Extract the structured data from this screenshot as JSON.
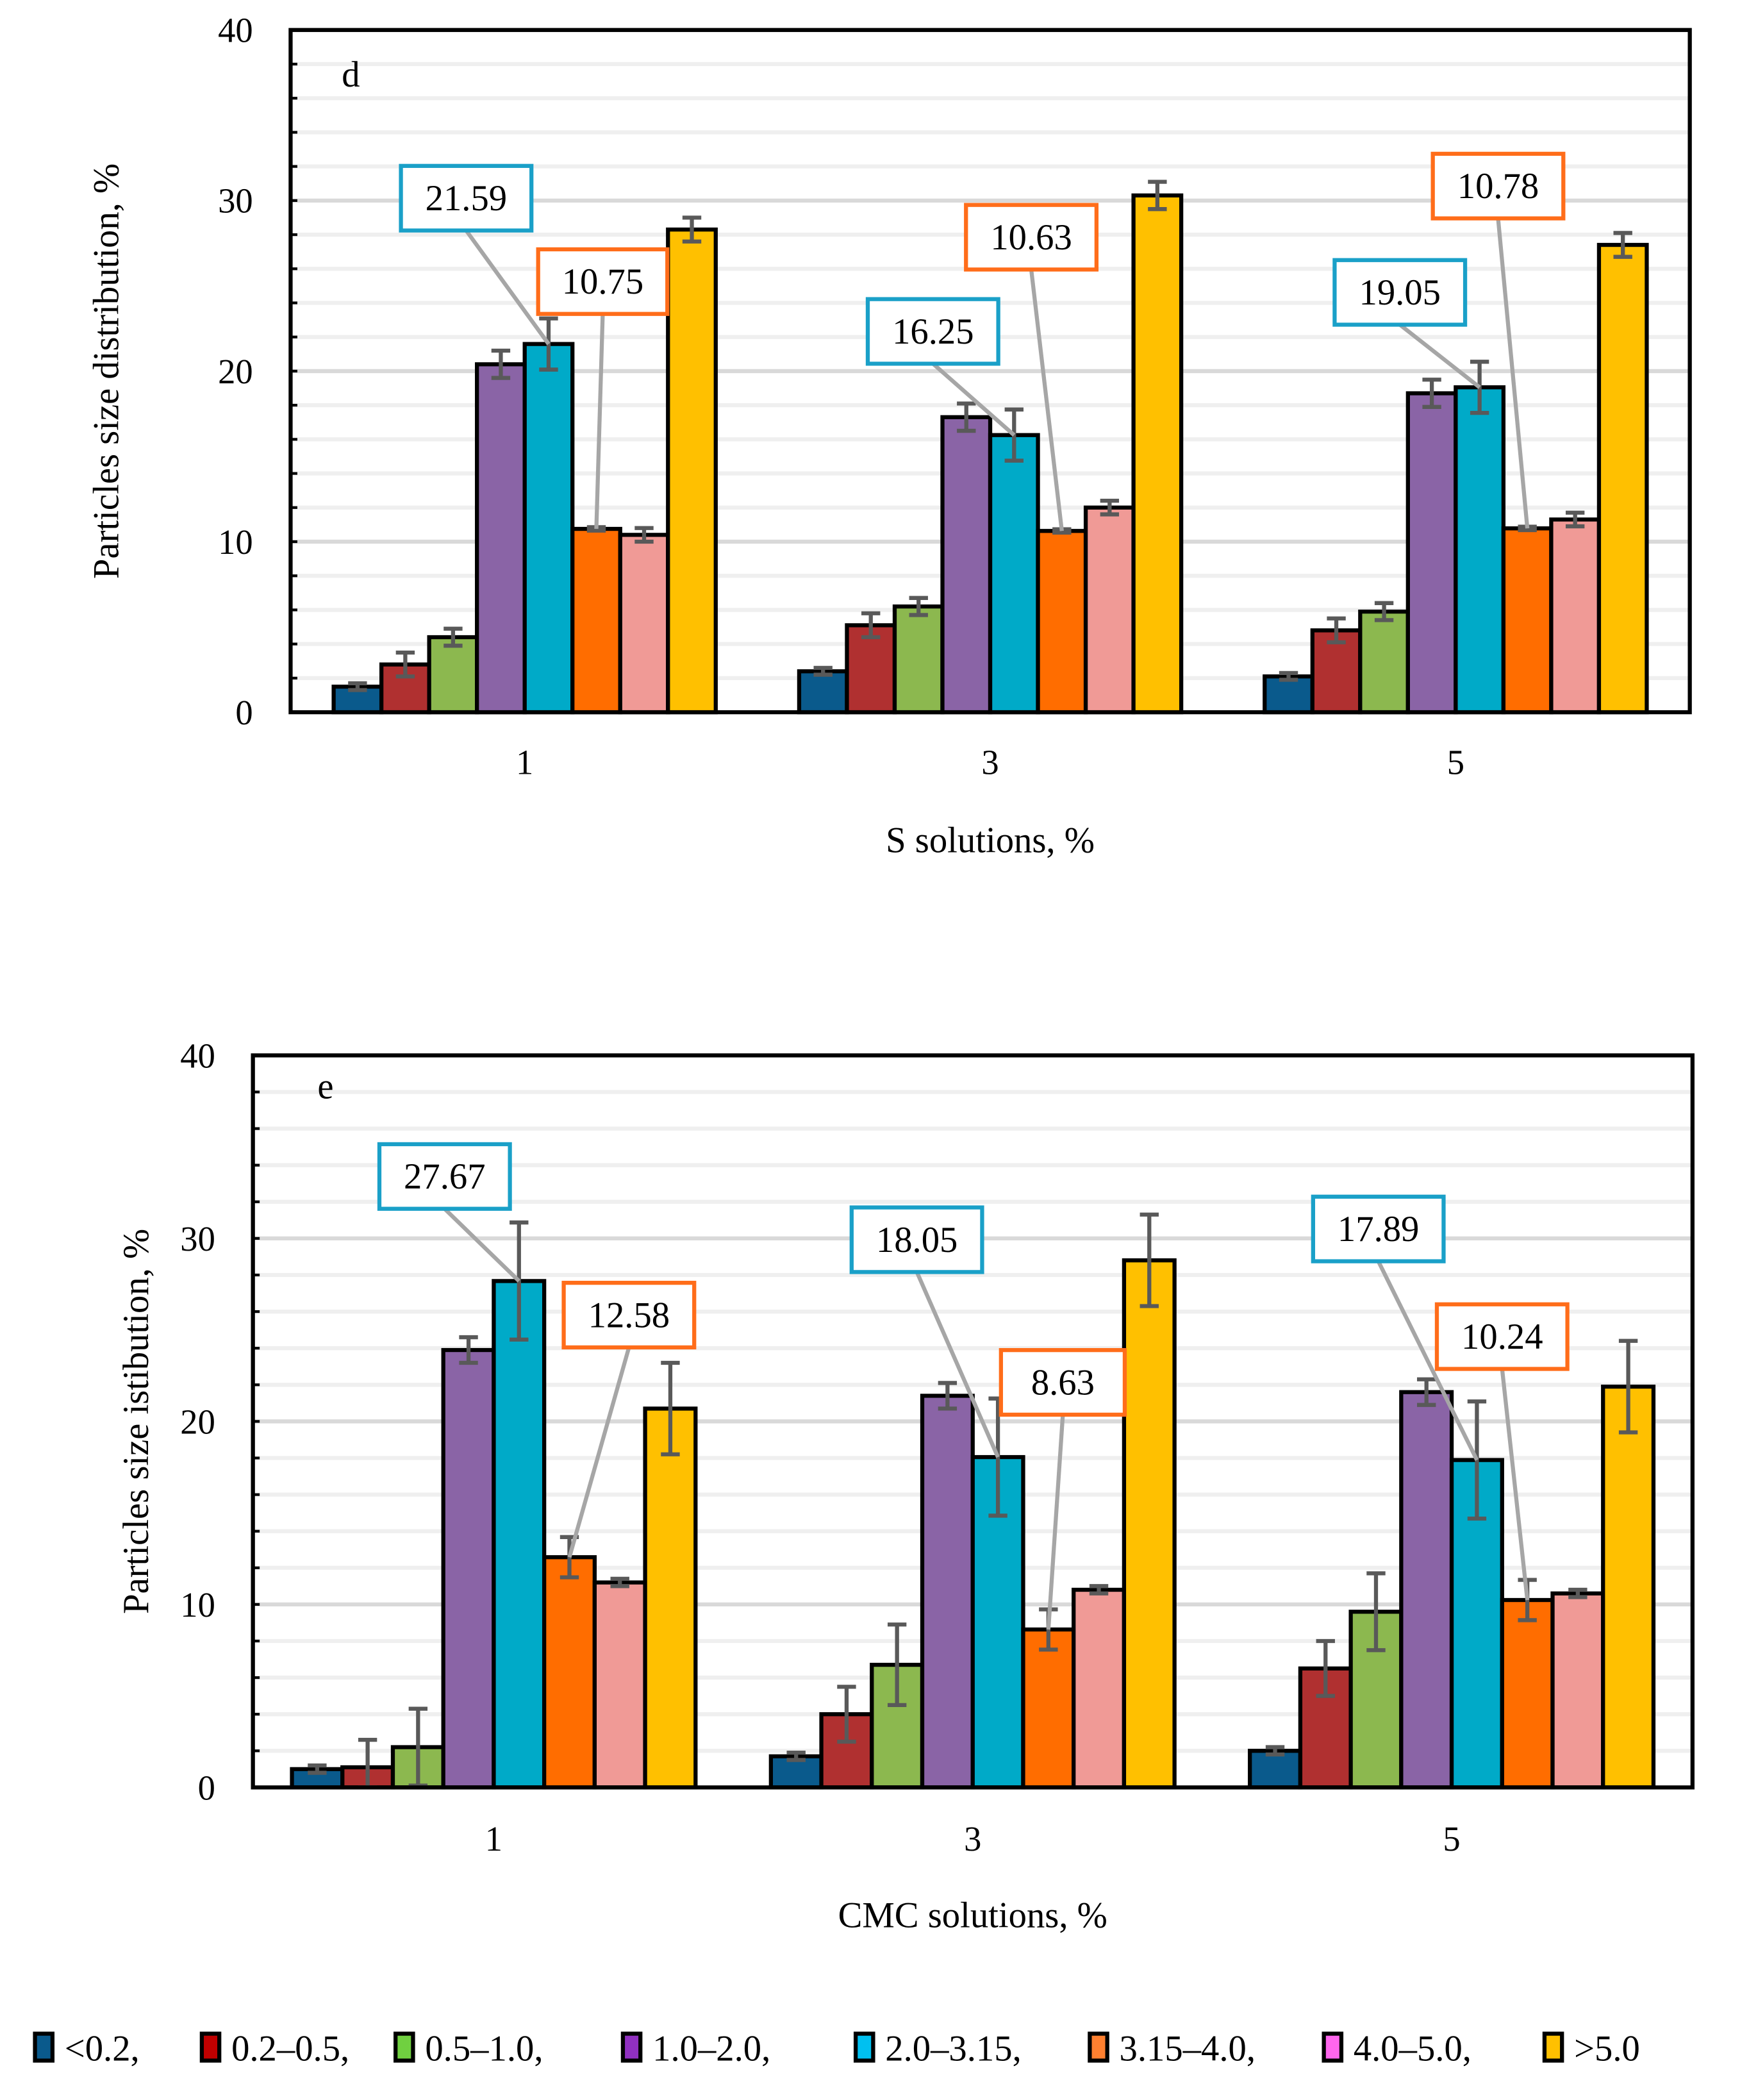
{
  "chart_data": [
    {
      "type": "bar",
      "panel_label": "d",
      "title": "",
      "xlabel": "S solutions, %",
      "ylabel": "Particles size distribution, %",
      "ylim": [
        0,
        40
      ],
      "yticks": [
        "0",
        "10",
        "20",
        "30",
        "40"
      ],
      "categories": [
        "1",
        "3",
        "5"
      ],
      "grid": true,
      "series": [
        {
          "name": "<0.2,",
          "values": [
            1.5,
            2.4,
            2.1
          ],
          "errors": [
            0.2,
            0.2,
            0.2
          ]
        },
        {
          "name": "0.2–0.5,",
          "values": [
            2.8,
            5.1,
            4.8
          ],
          "errors": [
            0.7,
            0.7,
            0.7
          ]
        },
        {
          "name": "0.5–1.0,",
          "values": [
            4.4,
            6.2,
            5.9
          ],
          "errors": [
            0.5,
            0.5,
            0.5
          ]
        },
        {
          "name": "1.0–2.0,",
          "values": [
            20.4,
            17.3,
            18.7
          ],
          "errors": [
            0.8,
            0.8,
            0.8
          ]
        },
        {
          "name": "2.0–3.15,",
          "values": [
            21.59,
            16.25,
            19.05
          ],
          "errors": [
            1.5,
            1.5,
            1.5
          ]
        },
        {
          "name": "3.15–4.0,",
          "values": [
            10.75,
            10.63,
            10.78
          ],
          "errors": [
            0.1,
            0.1,
            0.1
          ]
        },
        {
          "name": "4.0–5.0,",
          "values": [
            10.4,
            12.0,
            11.3
          ],
          "errors": [
            0.4,
            0.4,
            0.4
          ]
        },
        {
          "name": ">5.0",
          "values": [
            28.3,
            30.3,
            27.4
          ],
          "errors": [
            0.7,
            0.8,
            0.7
          ]
        }
      ],
      "annotations": [
        {
          "text": "21.59",
          "group": 0,
          "series": 4
        },
        {
          "text": "10.75",
          "group": 0,
          "series": 5
        },
        {
          "text": "16.25",
          "group": 1,
          "series": 4
        },
        {
          "text": "10.63",
          "group": 1,
          "series": 5
        },
        {
          "text": "19.05",
          "group": 2,
          "series": 4
        },
        {
          "text": "10.78",
          "group": 2,
          "series": 5
        }
      ]
    },
    {
      "type": "bar",
      "panel_label": "e",
      "title": "",
      "xlabel": "CMC solutions, %",
      "ylabel": "Particles size istibution, %",
      "ylim": [
        0,
        40
      ],
      "yticks": [
        "0",
        "10",
        "20",
        "30",
        "40"
      ],
      "categories": [
        "1",
        "3",
        "5"
      ],
      "grid": true,
      "series": [
        {
          "name": "<0.2,",
          "values": [
            1.0,
            1.7,
            2.0
          ],
          "errors": [
            0.2,
            0.2,
            0.2
          ]
        },
        {
          "name": "0.2–0.5,",
          "values": [
            1.1,
            4.0,
            6.5
          ],
          "errors": [
            1.5,
            1.5,
            1.5
          ]
        },
        {
          "name": "0.5–1.0,",
          "values": [
            2.2,
            6.7,
            9.6
          ],
          "errors": [
            2.1,
            2.2,
            2.1
          ]
        },
        {
          "name": "1.0–2.0,",
          "values": [
            23.9,
            21.4,
            21.6
          ],
          "errors": [
            0.7,
            0.7,
            0.7
          ]
        },
        {
          "name": "2.0–3.15,",
          "values": [
            27.67,
            18.05,
            17.89
          ],
          "errors": [
            3.2,
            3.2,
            3.2
          ]
        },
        {
          "name": "3.15–4.0,",
          "values": [
            12.58,
            8.63,
            10.24
          ],
          "errors": [
            1.1,
            1.1,
            1.1
          ]
        },
        {
          "name": "4.0–5.0,",
          "values": [
            11.2,
            10.8,
            10.6
          ],
          "errors": [
            0.2,
            0.2,
            0.2
          ]
        },
        {
          "name": ">5.0",
          "values": [
            20.7,
            28.8,
            21.9
          ],
          "errors": [
            2.5,
            2.5,
            2.5
          ]
        }
      ],
      "annotations": [
        {
          "text": "27.67",
          "group": 0,
          "series": 4
        },
        {
          "text": "12.58",
          "group": 0,
          "series": 5
        },
        {
          "text": "18.05",
          "group": 1,
          "series": 4
        },
        {
          "text": "8.63",
          "group": 1,
          "series": 5
        },
        {
          "text": "17.89",
          "group": 2,
          "series": 4
        },
        {
          "text": "10.24",
          "group": 2,
          "series": 5
        }
      ]
    }
  ],
  "bar_colors": [
    "#0a5a8c",
    "#b03030",
    "#8cb84f",
    "#8a64a6",
    "#00aac8",
    "#ff6d00",
    "#f09a96",
    "#ffc000"
  ],
  "legend": {
    "position": "bottom",
    "items": [
      {
        "label": "<0.2,",
        "color": "#0a5a8c"
      },
      {
        "label": "0.2–0.5,",
        "color": "#c00000"
      },
      {
        "label": "0.5–1.0,",
        "color": "#70d040"
      },
      {
        "label": "1.0–2.0,",
        "color": "#9030c0"
      },
      {
        "label": "2.0–3.15,",
        "color": "#00c0f0"
      },
      {
        "label": "3.15–4.0,",
        "color": "#ff8030"
      },
      {
        "label": "4.0–5.0,",
        "color": "#ff66ee"
      },
      {
        "label": ">5.0",
        "color": "#ffc000"
      }
    ]
  },
  "callout_colors": {
    "blue": "#1aa0c8",
    "orange": "#ff6d1a"
  }
}
